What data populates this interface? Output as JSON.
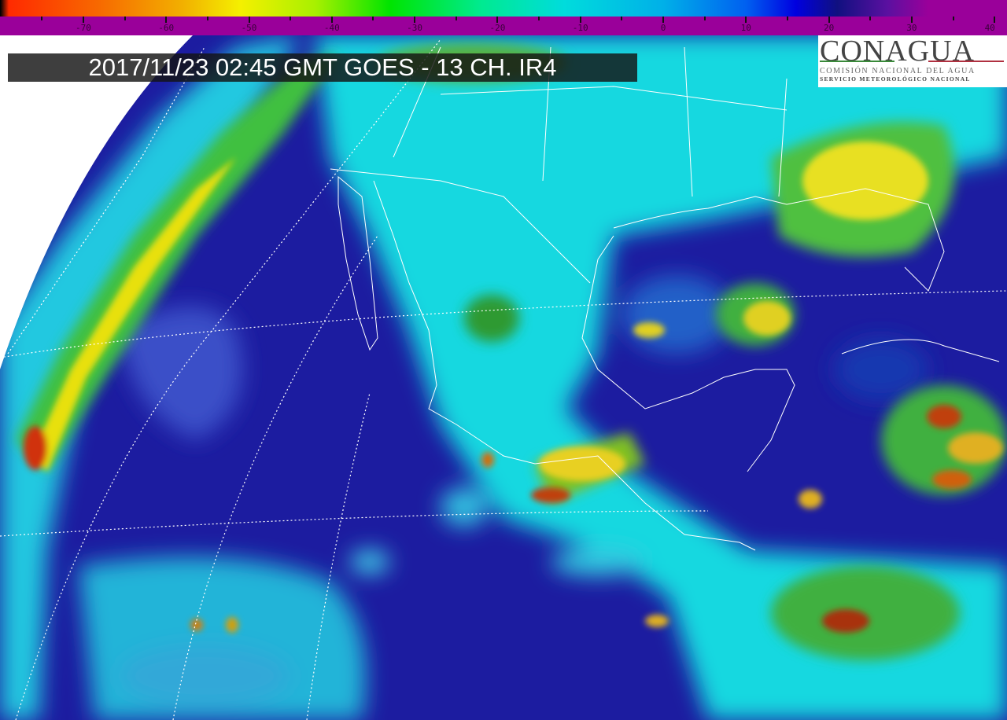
{
  "title": "2017/11/23 02:45 GMT GOES - 13 CH. IR4",
  "logo": {
    "name": "CONAGUA",
    "line1": "COMISIÓN NACIONAL DEL AGUA",
    "line2": "SERVICIO METEOROLÓGICO NACIONAL"
  },
  "colorbar": {
    "unit_labels": [
      "-70",
      "-60",
      "-50",
      "-40",
      "-30",
      "-20",
      "-10",
      "0",
      "10",
      "20",
      "30",
      "40"
    ],
    "stops": [
      {
        "value": -80,
        "color": "#000000"
      },
      {
        "value": -79,
        "color": "#ff2a00"
      },
      {
        "value": -68,
        "color": "#f76a00"
      },
      {
        "value": -58,
        "color": "#f2b000"
      },
      {
        "value": -51,
        "color": "#f4f000"
      },
      {
        "value": -42,
        "color": "#a8f000"
      },
      {
        "value": -33,
        "color": "#00e400"
      },
      {
        "value": -22,
        "color": "#00ea90"
      },
      {
        "value": -12,
        "color": "#00dcdc"
      },
      {
        "value": 0,
        "color": "#00b0e8"
      },
      {
        "value": 10,
        "color": "#0060f0"
      },
      {
        "value": 16,
        "color": "#0000e0"
      },
      {
        "value": 21,
        "color": "#101080"
      },
      {
        "value": 27,
        "color": "#5a10a0"
      },
      {
        "value": 32,
        "color": "#9a009a"
      },
      {
        "value": 42,
        "color": "#9a009a"
      }
    ]
  }
}
